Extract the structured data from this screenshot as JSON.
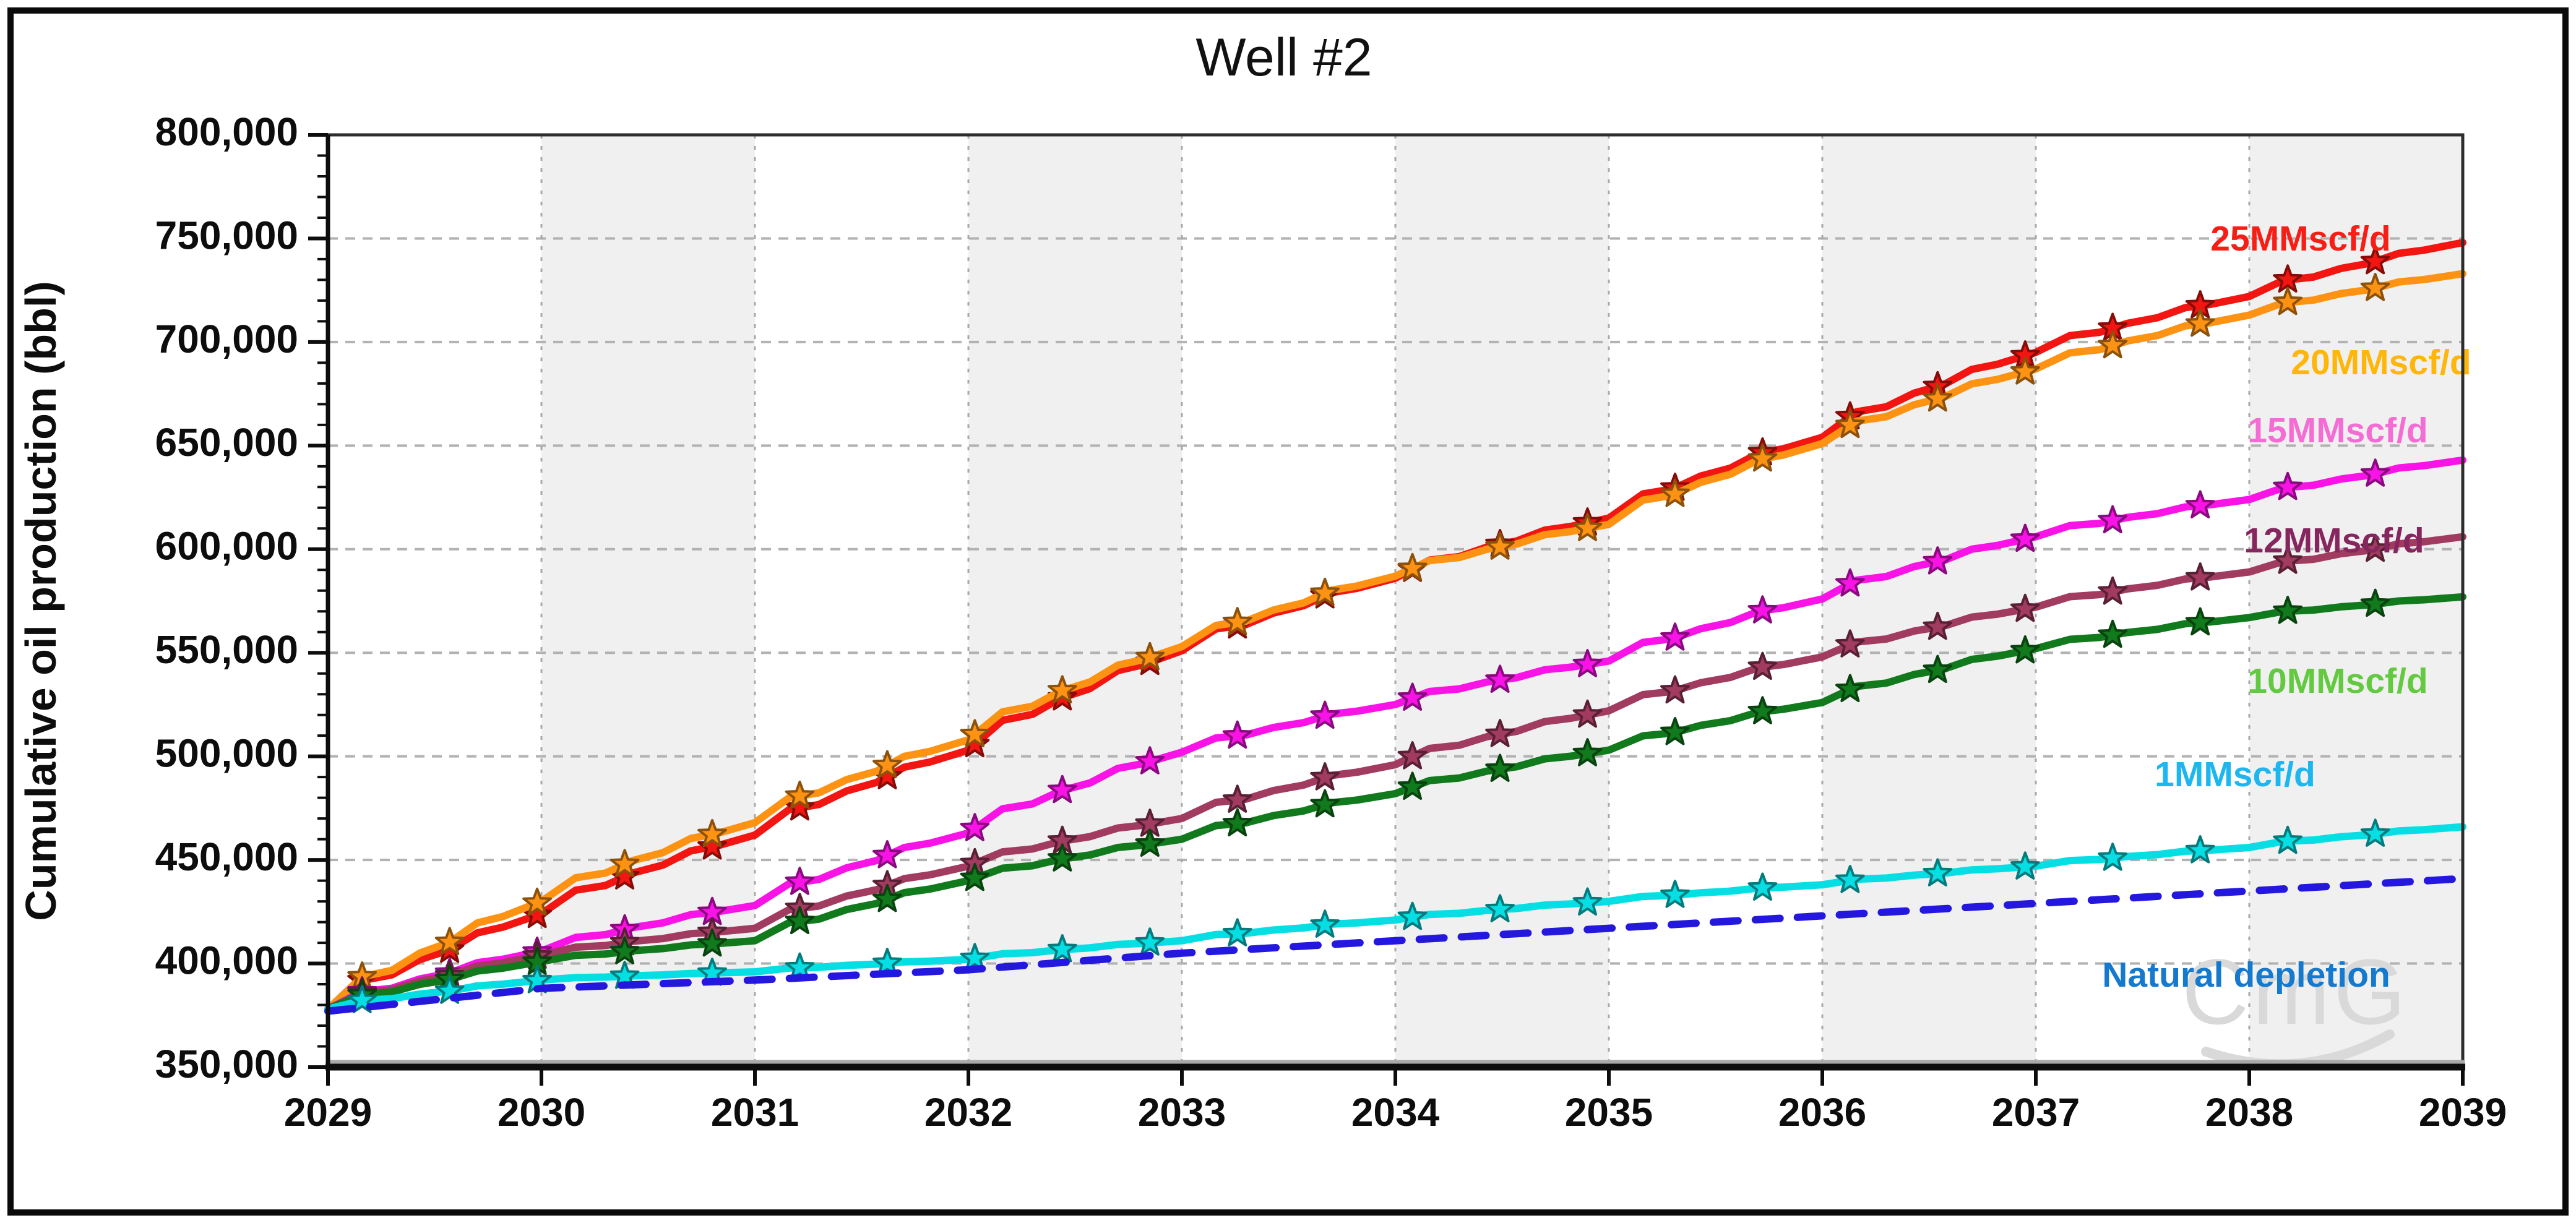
{
  "title": "Well #2",
  "watermark": "CmG",
  "y_axis": {
    "label": "Cumulative oil production (bbl)",
    "min": 350000,
    "max": 800000,
    "major_step": 50000,
    "minor_step": 10000,
    "tick_labels": [
      "350,000",
      "400,000",
      "450,000",
      "500,000",
      "550,000",
      "600,000",
      "650,000",
      "700,000",
      "750,000",
      "800,000"
    ]
  },
  "x_axis": {
    "min": 2029,
    "max": 2039,
    "major_step": 1,
    "tick_labels": [
      "2029",
      "2030",
      "2031",
      "2032",
      "2033",
      "2034",
      "2035",
      "2036",
      "2037",
      "2038",
      "2039"
    ]
  },
  "chart_data": {
    "type": "line",
    "title": "Well #2",
    "xlabel": "",
    "ylabel": "Cumulative oil production (bbl)",
    "xlim": [
      2029,
      2039
    ],
    "ylim": [
      350000,
      800000
    ],
    "grid": "dotted horizontal at 50,000 steps; dashed vertical at each year; alternating light-gray year bands",
    "legend_position": "inline labels at right side of plot",
    "x": [
      2029,
      2030,
      2031,
      2032,
      2033,
      2034,
      2035,
      2036,
      2037,
      2038,
      2039
    ],
    "series": [
      {
        "name": "25MMscf/d",
        "color": "#f21511",
        "label_color": "#f81d15",
        "line_style": "solid",
        "marker": "star",
        "values": [
          378000,
          424000,
          462000,
          503000,
          551000,
          586000,
          615000,
          654000,
          695000,
          722000,
          748000
        ],
        "label_pos": {
          "x": 3718,
          "y": 390
        }
      },
      {
        "name": "20MMscf/d",
        "color": "#fe9313",
        "label_color": "#ffb60a",
        "line_style": "solid",
        "marker": "star",
        "values": [
          378000,
          430000,
          468000,
          508000,
          553000,
          587000,
          612000,
          651000,
          687000,
          713000,
          733000
        ],
        "label_pos": {
          "x": 3848,
          "y": 590
        }
      },
      {
        "name": "15MMscf/d",
        "color": "#f913e6",
        "label_color": "#f46cd4",
        "line_style": "solid",
        "marker": "star",
        "values": [
          378000,
          406000,
          428000,
          463000,
          502000,
          525000,
          546000,
          576000,
          606000,
          624000,
          643000
        ],
        "label_pos": {
          "x": 3778,
          "y": 700
        }
      },
      {
        "name": "12MMscf/d",
        "color": "#a23b60",
        "label_color": "#86265f",
        "line_style": "solid",
        "marker": "star",
        "values": [
          378000,
          404000,
          417000,
          447000,
          470000,
          496000,
          522000,
          548000,
          572000,
          589000,
          606000
        ],
        "label_pos": {
          "x": 3772,
          "y": 878
        }
      },
      {
        "name": "10MMscf/d",
        "color": "#107a1c",
        "label_color": "#63c940",
        "line_style": "solid",
        "marker": "star",
        "values": [
          378000,
          401000,
          411000,
          440000,
          460000,
          482000,
          503000,
          526000,
          552000,
          567000,
          577000
        ],
        "label_pos": {
          "x": 3778,
          "y": 1105
        }
      },
      {
        "name": "1MMscf/d",
        "color": "#05dfe4",
        "label_color": "#1db7ef",
        "line_style": "solid",
        "marker": "star",
        "values": [
          378000,
          392000,
          396000,
          402000,
          411000,
          421000,
          430000,
          438000,
          447000,
          456000,
          466000
        ],
        "label_pos": {
          "x": 3612,
          "y": 1256
        }
      },
      {
        "name": "Natural depletion",
        "color": "#2418df",
        "label_color": "#1579ce",
        "line_style": "dashed",
        "marker": "none",
        "values": [
          377000,
          388000,
          392000,
          397000,
          405000,
          411000,
          417000,
          423000,
          429000,
          435000,
          441000
        ],
        "label_pos": {
          "x": 3630,
          "y": 1580
        }
      }
    ]
  }
}
